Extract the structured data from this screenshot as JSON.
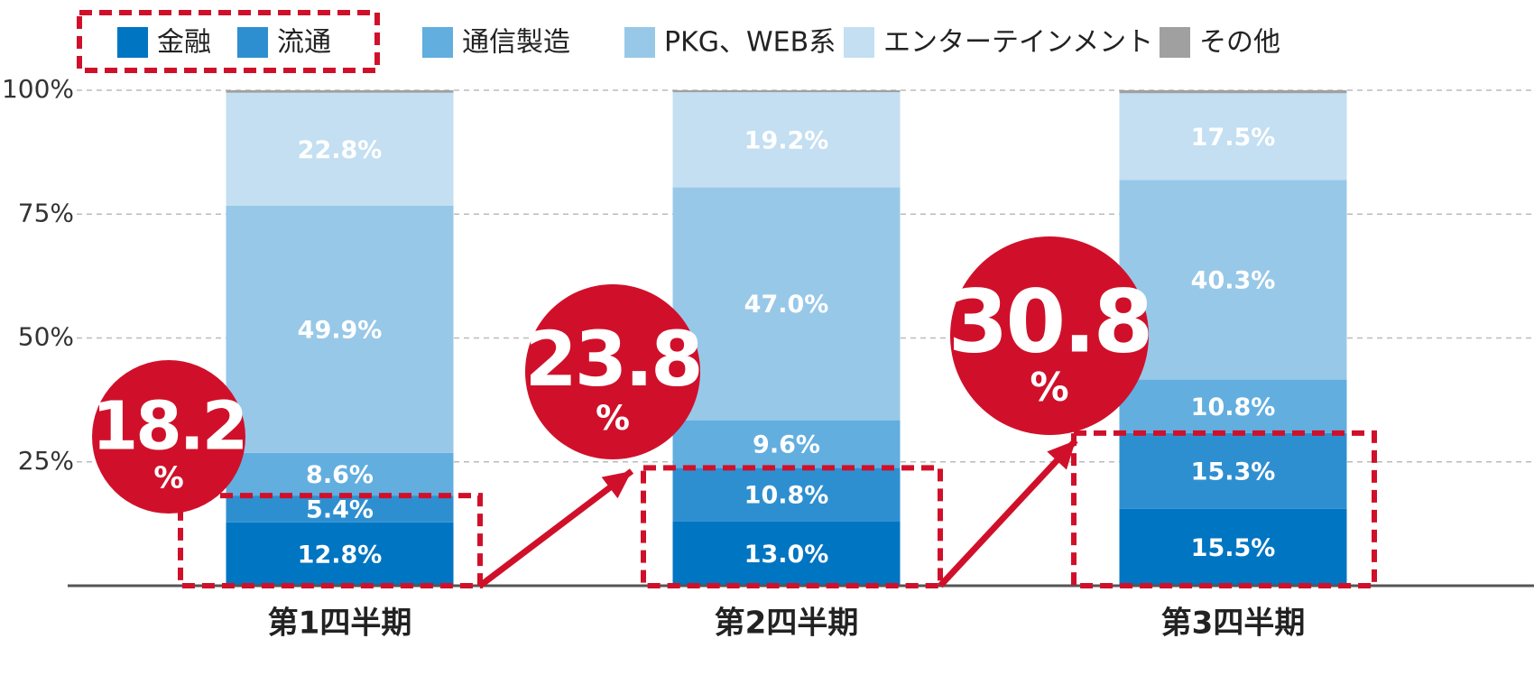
{
  "chart_data": {
    "type": "stacked_bar",
    "categories": [
      "第1四半期",
      "第2四半期",
      "第3四半期"
    ],
    "series": [
      {
        "name": "金融",
        "color": "#0075c2",
        "values": [
          12.8,
          13.0,
          15.5
        ],
        "value_labels": [
          "12.8%",
          "13.0%",
          "15.5%"
        ]
      },
      {
        "name": "流通",
        "color": "#2e8fd0",
        "values": [
          5.4,
          10.8,
          15.3
        ],
        "value_labels": [
          "5.4%",
          "10.8%",
          "15.3%"
        ]
      },
      {
        "name": "通信製造",
        "color": "#62aedf",
        "values": [
          8.6,
          9.6,
          10.8
        ],
        "value_labels": [
          "8.6%",
          "9.6%",
          "10.8%"
        ]
      },
      {
        "name": "PKG、WEB系",
        "color": "#98c8e8",
        "values": [
          49.9,
          47.0,
          40.3
        ],
        "value_labels": [
          "49.9%",
          "47.0%",
          "40.3%"
        ]
      },
      {
        "name": "エンターテインメント",
        "color": "#c3dff1",
        "values": [
          22.8,
          19.2,
          17.5
        ],
        "value_labels": [
          "22.8%",
          "19.2%",
          "17.5%"
        ]
      },
      {
        "name": "その他",
        "color": "#a0a0a0",
        "values": [
          0.5,
          0.4,
          0.6
        ]
      }
    ],
    "ylim": [
      0,
      100
    ],
    "yticks": [
      {
        "value": 25,
        "label": "25%"
      },
      {
        "value": 50,
        "label": "50%"
      },
      {
        "value": 75,
        "label": "75%"
      },
      {
        "value": 100,
        "label": "100%"
      }
    ],
    "grid": true,
    "annotations": [
      {
        "value": 18.2,
        "unit": "%"
      },
      {
        "value": 23.8,
        "unit": "%"
      },
      {
        "value": 30.8,
        "unit": "%"
      }
    ]
  }
}
